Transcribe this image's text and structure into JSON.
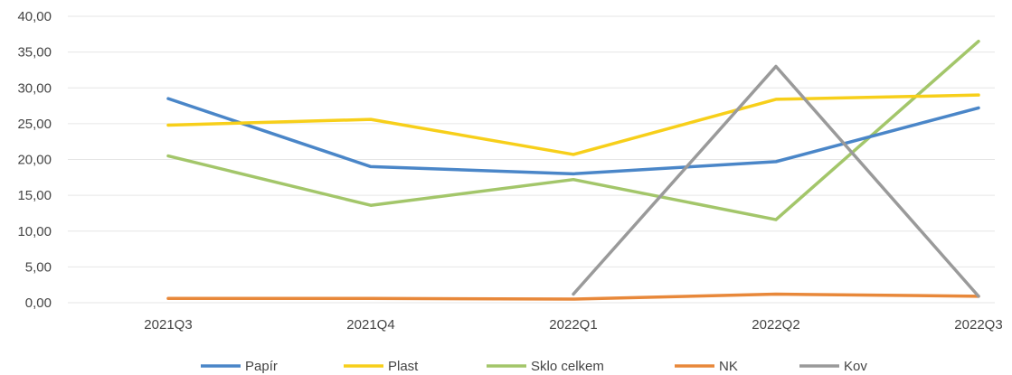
{
  "chart_data": {
    "type": "line",
    "title": "",
    "xlabel": "",
    "ylabel": "",
    "categories": [
      "2021Q3",
      "2021Q4",
      "2022Q1",
      "2022Q2",
      "2022Q3"
    ],
    "ylim": [
      0,
      40
    ],
    "yticks": [
      "0,00",
      "5,00",
      "10,00",
      "15,00",
      "20,00",
      "25,00",
      "30,00",
      "35,00",
      "40,00"
    ],
    "grid": true,
    "legend_position": "bottom",
    "series": [
      {
        "name": "Papír",
        "color": "#4a86c8",
        "values": [
          28.5,
          19.0,
          18.0,
          19.7,
          27.2
        ]
      },
      {
        "name": "Plast",
        "color": "#f7cf1a",
        "values": [
          24.8,
          25.6,
          20.7,
          28.4,
          29.0
        ]
      },
      {
        "name": "Sklo celkem",
        "color": "#a3c66a",
        "values": [
          20.5,
          13.6,
          17.2,
          11.6,
          36.5
        ]
      },
      {
        "name": "NK",
        "color": "#e8883a",
        "values": [
          0.6,
          0.6,
          0.5,
          1.2,
          0.9
        ]
      },
      {
        "name": "Kov",
        "color": "#9a9a9a",
        "values": [
          null,
          null,
          1.2,
          33.0,
          0.9
        ]
      }
    ]
  }
}
